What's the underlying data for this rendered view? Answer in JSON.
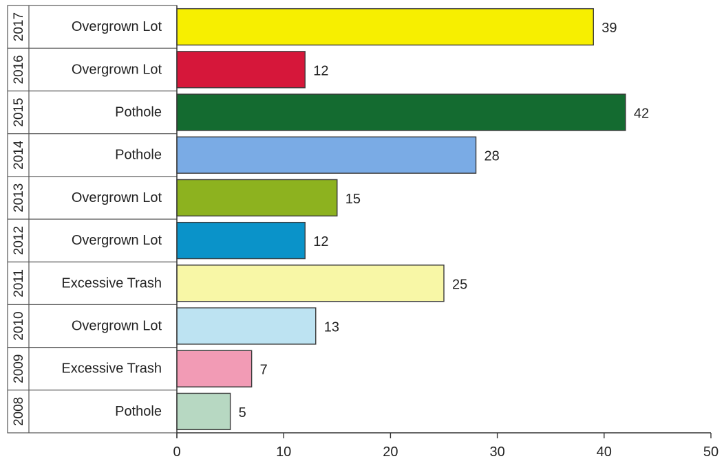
{
  "chart_data": {
    "type": "bar",
    "orientation": "horizontal",
    "title": "",
    "xlabel": "",
    "ylabel": "",
    "xlim": [
      0,
      50
    ],
    "x_ticks": [
      0,
      10,
      20,
      30,
      40,
      50
    ],
    "grid": false,
    "rows": [
      {
        "year": "2017",
        "category": "Overgrown Lot",
        "value": 39,
        "color": "#f7ef00"
      },
      {
        "year": "2016",
        "category": "Overgrown Lot",
        "value": 12,
        "color": "#d6173a"
      },
      {
        "year": "2015",
        "category": "Pothole",
        "value": 42,
        "color": "#146b30"
      },
      {
        "year": "2014",
        "category": "Pothole",
        "value": 28,
        "color": "#7aabe5"
      },
      {
        "year": "2013",
        "category": "Overgrown Lot",
        "value": 15,
        "color": "#8db21f"
      },
      {
        "year": "2012",
        "category": "Overgrown Lot",
        "value": 12,
        "color": "#0a93c9"
      },
      {
        "year": "2011",
        "category": "Excessive Trash",
        "value": 25,
        "color": "#f8f7a6"
      },
      {
        "year": "2010",
        "category": "Overgrown Lot",
        "value": 13,
        "color": "#bde3f2"
      },
      {
        "year": "2009",
        "category": "Excessive Trash",
        "value": 7,
        "color": "#f29bb5"
      },
      {
        "year": "2008",
        "category": "Pothole",
        "value": 5,
        "color": "#b7d8c2"
      }
    ]
  }
}
